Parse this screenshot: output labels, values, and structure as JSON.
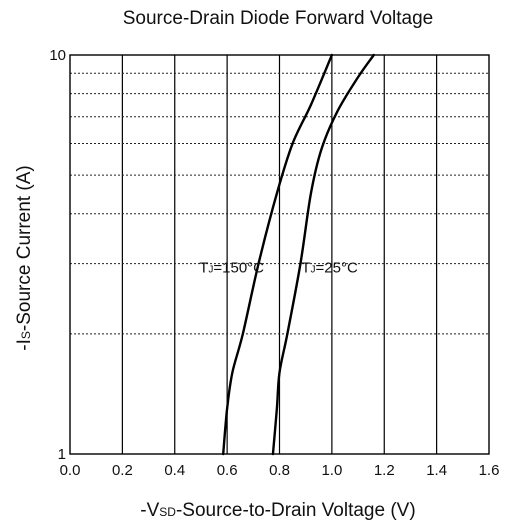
{
  "chart_data": {
    "type": "line",
    "title": "Source-Drain Diode Forward Voltage",
    "xlabel": {
      "prefix": "-V",
      "sub": "SD",
      "suffix": "-Source-to-Drain Voltage (V)"
    },
    "ylabel": {
      "prefix": "-I",
      "sub": "S",
      "suffix": "-Source Current (A)"
    },
    "xlim": [
      0.0,
      1.6
    ],
    "ylim": [
      1,
      10
    ],
    "yscale": "log",
    "x_ticks": [
      "0.0",
      "0.2",
      "0.4",
      "0.6",
      "0.8",
      "1.0",
      "1.2",
      "1.4",
      "1.6"
    ],
    "y_ticks": [
      "1",
      "10"
    ],
    "grid": true,
    "series": [
      {
        "label": {
          "prefix": "T",
          "sub": "J",
          "suffix": "=150°C"
        },
        "points": [
          [
            0.585,
            1.0
          ],
          [
            0.6,
            1.3
          ],
          [
            0.62,
            1.6
          ],
          [
            0.66,
            2.0
          ],
          [
            0.72,
            3.0
          ],
          [
            0.79,
            4.5
          ],
          [
            0.85,
            6.0
          ],
          [
            0.92,
            7.5
          ],
          [
            1.0,
            10.0
          ]
        ]
      },
      {
        "label": {
          "prefix": "T",
          "sub": "J",
          "suffix": "=25°C"
        },
        "points": [
          [
            0.775,
            1.0
          ],
          [
            0.79,
            1.3
          ],
          [
            0.8,
            1.6
          ],
          [
            0.83,
            2.0
          ],
          [
            0.88,
            3.0
          ],
          [
            0.92,
            4.5
          ],
          [
            0.96,
            5.8
          ],
          [
            1.02,
            7.2
          ],
          [
            1.1,
            8.8
          ],
          [
            1.16,
            10.0
          ]
        ]
      }
    ]
  }
}
